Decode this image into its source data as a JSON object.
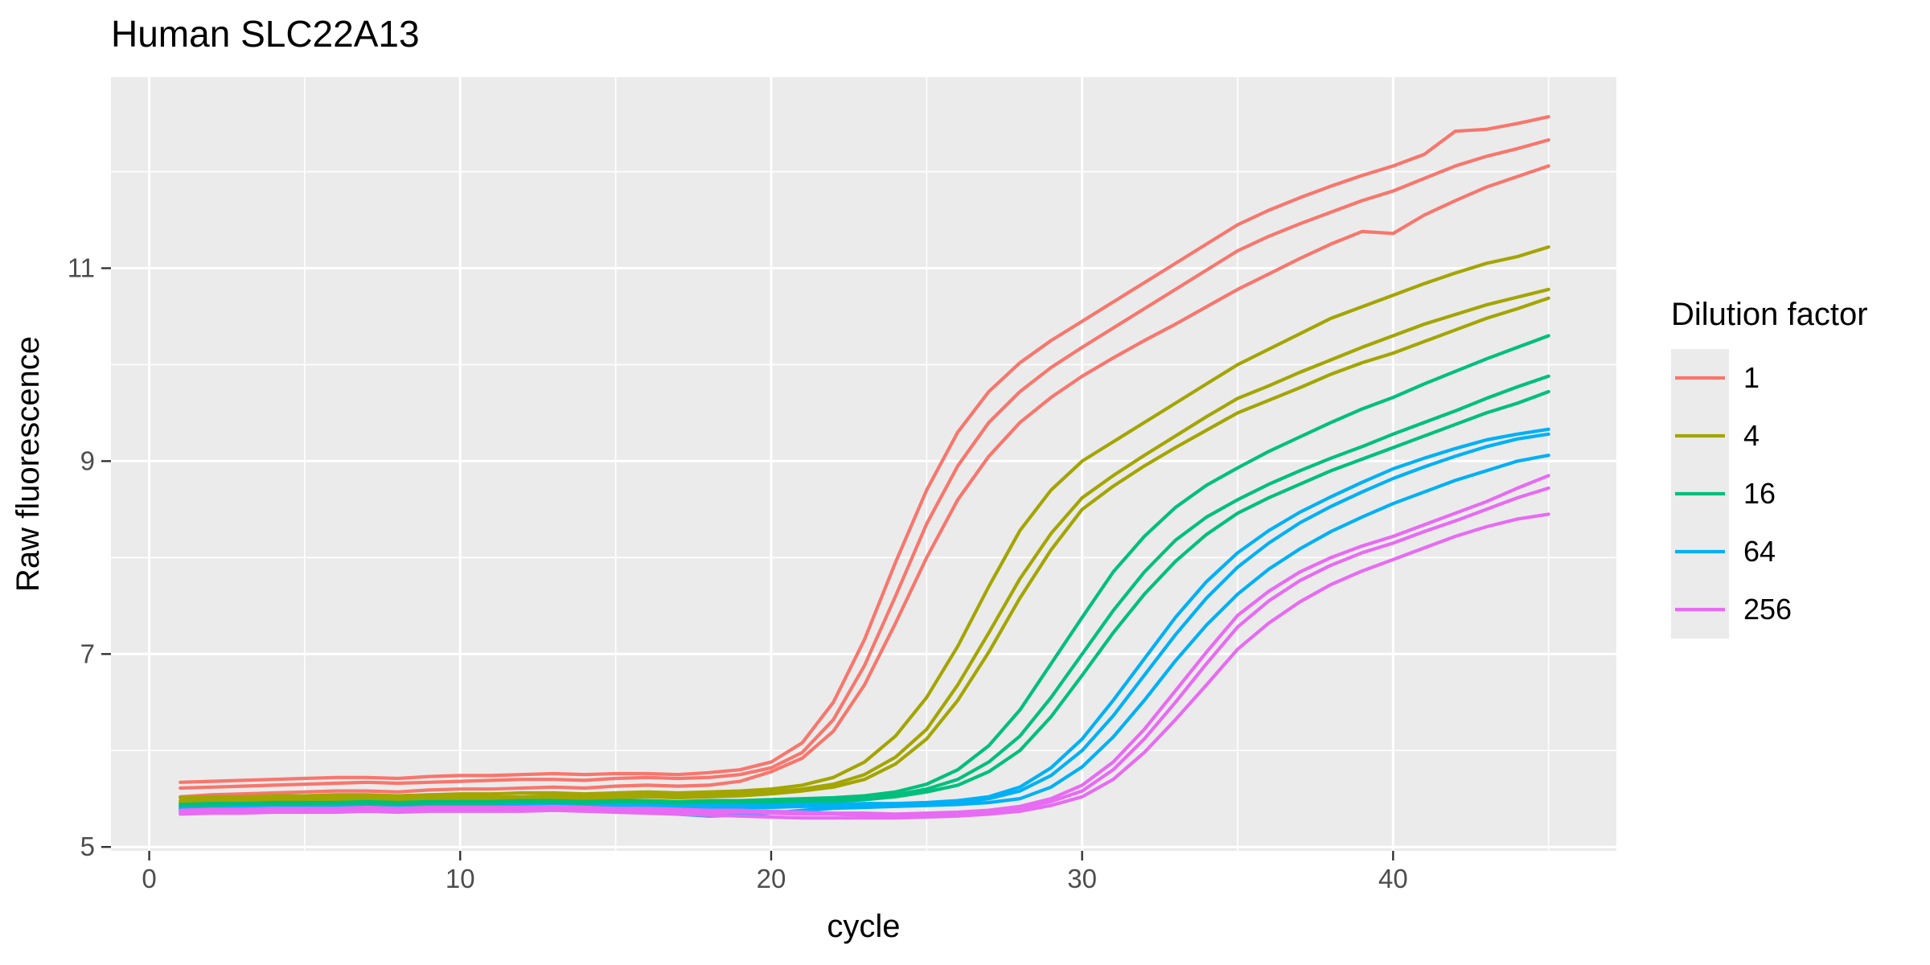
{
  "title": "Human SLC22A13",
  "axes": {
    "x": {
      "label": "cycle",
      "major_ticks": [
        0,
        10,
        20,
        30,
        40
      ],
      "minor_ticks": [
        5,
        15,
        25,
        35,
        45
      ],
      "range": [
        -1.23,
        47.18
      ]
    },
    "y": {
      "label": "Raw fluorescence",
      "major_ticks": [
        5,
        7,
        9,
        11
      ],
      "minor_ticks": [
        6,
        8,
        10,
        12
      ],
      "range": [
        4.96,
        12.98
      ]
    }
  },
  "legend": {
    "title": "Dilution factor",
    "entries": [
      {
        "label": "1",
        "color": "#F8766D"
      },
      {
        "label": "4",
        "color": "#A3A500"
      },
      {
        "label": "16",
        "color": "#00BF7D"
      },
      {
        "label": "64",
        "color": "#00B0F6"
      },
      {
        "label": "256",
        "color": "#E76BF3"
      }
    ]
  },
  "style": {
    "panel_bg": "#EBEBEB",
    "grid_color": "#FFFFFF",
    "tick_color": "#333333",
    "line_width": 4.2
  },
  "chart_data": {
    "type": "line",
    "title": "Human SLC22A13",
    "xlabel": "cycle",
    "ylabel": "Raw fluorescence",
    "xlim": [
      -1.23,
      47.18
    ],
    "ylim": [
      4.96,
      12.98
    ],
    "grid": true,
    "legend_position": "right",
    "x": [
      1,
      2,
      3,
      4,
      5,
      6,
      7,
      8,
      9,
      10,
      11,
      12,
      13,
      14,
      15,
      16,
      17,
      18,
      19,
      20,
      21,
      22,
      23,
      24,
      25,
      26,
      27,
      28,
      29,
      30,
      31,
      32,
      33,
      34,
      35,
      36,
      37,
      38,
      39,
      40,
      41,
      42,
      43,
      44,
      45
    ],
    "series": [
      {
        "name": "dilution 1 rep 1",
        "dilution": "1",
        "color": "#F8766D",
        "values": [
          5.67,
          5.68,
          5.69,
          5.7,
          5.71,
          5.72,
          5.72,
          5.71,
          5.73,
          5.74,
          5.74,
          5.75,
          5.76,
          5.75,
          5.76,
          5.76,
          5.75,
          5.77,
          5.8,
          5.88,
          6.08,
          6.5,
          7.15,
          7.95,
          8.7,
          9.3,
          9.72,
          10.02,
          10.25,
          10.45,
          10.65,
          10.85,
          11.05,
          11.25,
          11.45,
          11.6,
          11.73,
          11.85,
          11.96,
          12.06,
          12.18,
          12.42,
          12.44,
          12.5,
          12.57
        ]
      },
      {
        "name": "dilution 1 rep 2",
        "dilution": "1",
        "color": "#F8766D",
        "values": [
          5.61,
          5.62,
          5.63,
          5.64,
          5.65,
          5.66,
          5.67,
          5.66,
          5.67,
          5.68,
          5.69,
          5.7,
          5.7,
          5.69,
          5.71,
          5.72,
          5.71,
          5.72,
          5.75,
          5.82,
          5.98,
          6.32,
          6.88,
          7.6,
          8.35,
          8.95,
          9.4,
          9.72,
          9.97,
          10.18,
          10.38,
          10.58,
          10.78,
          10.98,
          11.18,
          11.33,
          11.46,
          11.58,
          11.7,
          11.8,
          11.93,
          12.06,
          12.16,
          12.24,
          12.33
        ]
      },
      {
        "name": "dilution 1 rep 3",
        "dilution": "1",
        "color": "#F8766D",
        "values": [
          5.52,
          5.54,
          5.55,
          5.56,
          5.57,
          5.58,
          5.58,
          5.57,
          5.59,
          5.6,
          5.6,
          5.61,
          5.62,
          5.61,
          5.63,
          5.64,
          5.63,
          5.64,
          5.68,
          5.78,
          5.92,
          6.2,
          6.68,
          7.32,
          8.0,
          8.6,
          9.05,
          9.4,
          9.66,
          9.88,
          10.07,
          10.25,
          10.42,
          10.6,
          10.78,
          10.94,
          11.1,
          11.25,
          11.38,
          11.36,
          11.55,
          11.7,
          11.84,
          11.95,
          12.06
        ]
      },
      {
        "name": "dilution 4 rep 1",
        "dilution": "4",
        "color": "#A3A500",
        "values": [
          5.51,
          5.52,
          5.52,
          5.53,
          5.53,
          5.54,
          5.54,
          5.53,
          5.54,
          5.55,
          5.55,
          5.56,
          5.56,
          5.55,
          5.56,
          5.57,
          5.56,
          5.57,
          5.58,
          5.6,
          5.64,
          5.72,
          5.88,
          6.15,
          6.55,
          7.08,
          7.7,
          8.28,
          8.7,
          9.0,
          9.2,
          9.4,
          9.6,
          9.8,
          10.0,
          10.16,
          10.32,
          10.48,
          10.6,
          10.72,
          10.84,
          10.95,
          11.05,
          11.12,
          11.22
        ]
      },
      {
        "name": "dilution 4 rep 2",
        "dilution": "4",
        "color": "#A3A500",
        "values": [
          5.48,
          5.49,
          5.49,
          5.5,
          5.5,
          5.51,
          5.51,
          5.5,
          5.51,
          5.52,
          5.52,
          5.52,
          5.53,
          5.52,
          5.53,
          5.54,
          5.53,
          5.54,
          5.55,
          5.57,
          5.6,
          5.65,
          5.75,
          5.93,
          6.22,
          6.68,
          7.22,
          7.78,
          8.25,
          8.62,
          8.85,
          9.06,
          9.26,
          9.46,
          9.65,
          9.78,
          9.92,
          10.05,
          10.18,
          10.3,
          10.42,
          10.52,
          10.62,
          10.7,
          10.78
        ]
      },
      {
        "name": "dilution 4 rep 3",
        "dilution": "4",
        "color": "#A3A500",
        "values": [
          5.46,
          5.47,
          5.47,
          5.48,
          5.48,
          5.49,
          5.49,
          5.48,
          5.49,
          5.5,
          5.5,
          5.5,
          5.51,
          5.5,
          5.51,
          5.52,
          5.51,
          5.52,
          5.53,
          5.55,
          5.58,
          5.62,
          5.7,
          5.86,
          6.12,
          6.52,
          7.02,
          7.58,
          8.08,
          8.5,
          8.74,
          8.95,
          9.14,
          9.32,
          9.5,
          9.63,
          9.76,
          9.9,
          10.02,
          10.12,
          10.24,
          10.36,
          10.48,
          10.58,
          10.69
        ]
      },
      {
        "name": "dilution 16 rep 1",
        "dilution": "16",
        "color": "#00BF7D",
        "values": [
          5.44,
          5.45,
          5.45,
          5.46,
          5.46,
          5.46,
          5.47,
          5.46,
          5.47,
          5.47,
          5.47,
          5.48,
          5.48,
          5.47,
          5.48,
          5.48,
          5.47,
          5.48,
          5.48,
          5.49,
          5.5,
          5.51,
          5.53,
          5.57,
          5.65,
          5.8,
          6.05,
          6.42,
          6.9,
          7.38,
          7.85,
          8.22,
          8.52,
          8.75,
          8.93,
          9.1,
          9.25,
          9.4,
          9.54,
          9.66,
          9.8,
          9.93,
          10.06,
          10.18,
          10.3
        ]
      },
      {
        "name": "dilution 16 rep 2",
        "dilution": "16",
        "color": "#00BF7D",
        "values": [
          5.42,
          5.43,
          5.43,
          5.44,
          5.44,
          5.44,
          5.45,
          5.44,
          5.45,
          5.45,
          5.45,
          5.46,
          5.46,
          5.45,
          5.46,
          5.46,
          5.45,
          5.46,
          5.46,
          5.47,
          5.48,
          5.49,
          5.51,
          5.54,
          5.6,
          5.7,
          5.88,
          6.15,
          6.55,
          7.0,
          7.45,
          7.85,
          8.18,
          8.42,
          8.6,
          8.76,
          8.9,
          9.03,
          9.15,
          9.28,
          9.4,
          9.52,
          9.65,
          9.77,
          9.88
        ]
      },
      {
        "name": "dilution 16 rep 3",
        "dilution": "16",
        "color": "#00BF7D",
        "values": [
          5.4,
          5.41,
          5.41,
          5.42,
          5.42,
          5.42,
          5.43,
          5.42,
          5.43,
          5.43,
          5.43,
          5.44,
          5.44,
          5.43,
          5.44,
          5.44,
          5.43,
          5.44,
          5.44,
          5.45,
          5.46,
          5.47,
          5.49,
          5.52,
          5.57,
          5.64,
          5.78,
          6.0,
          6.35,
          6.78,
          7.22,
          7.62,
          7.96,
          8.24,
          8.46,
          8.62,
          8.76,
          8.9,
          9.02,
          9.14,
          9.26,
          9.38,
          9.5,
          9.6,
          9.72
        ]
      },
      {
        "name": "dilution 64 rep 1",
        "dilution": "64",
        "color": "#00B0F6",
        "values": [
          5.4,
          5.4,
          5.41,
          5.41,
          5.41,
          5.42,
          5.42,
          5.41,
          5.42,
          5.42,
          5.42,
          5.43,
          5.43,
          5.42,
          5.43,
          5.43,
          5.42,
          5.43,
          5.43,
          5.43,
          5.44,
          5.44,
          5.45,
          5.45,
          5.46,
          5.48,
          5.52,
          5.62,
          5.82,
          6.12,
          6.52,
          6.95,
          7.38,
          7.75,
          8.05,
          8.28,
          8.47,
          8.63,
          8.78,
          8.92,
          9.03,
          9.13,
          9.22,
          9.28,
          9.33
        ]
      },
      {
        "name": "dilution 64 rep 2",
        "dilution": "64",
        "color": "#00B0F6",
        "values": [
          5.38,
          5.38,
          5.39,
          5.39,
          5.39,
          5.4,
          5.4,
          5.39,
          5.4,
          5.4,
          5.4,
          5.41,
          5.41,
          5.4,
          5.41,
          5.41,
          5.4,
          5.41,
          5.41,
          5.41,
          5.42,
          5.42,
          5.43,
          5.43,
          5.44,
          5.46,
          5.5,
          5.58,
          5.74,
          6.0,
          6.36,
          6.78,
          7.2,
          7.58,
          7.9,
          8.15,
          8.36,
          8.53,
          8.68,
          8.82,
          8.94,
          9.05,
          9.15,
          9.23,
          9.28
        ]
      },
      {
        "name": "dilution 64 rep 3",
        "dilution": "64",
        "color": "#00B0F6",
        "values": [
          5.36,
          5.36,
          5.37,
          5.37,
          5.37,
          5.38,
          5.38,
          5.37,
          5.38,
          5.38,
          5.38,
          5.38,
          5.39,
          5.38,
          5.37,
          5.36,
          5.34,
          5.32,
          5.33,
          5.35,
          5.38,
          5.4,
          5.41,
          5.42,
          5.43,
          5.44,
          5.46,
          5.5,
          5.62,
          5.83,
          6.14,
          6.52,
          6.93,
          7.3,
          7.62,
          7.88,
          8.09,
          8.27,
          8.42,
          8.56,
          8.68,
          8.8,
          8.9,
          9.0,
          9.06
        ]
      },
      {
        "name": "dilution 256 rep 1",
        "dilution": "256",
        "color": "#E76BF3",
        "values": [
          5.38,
          5.39,
          5.39,
          5.4,
          5.4,
          5.4,
          5.41,
          5.4,
          5.41,
          5.41,
          5.41,
          5.41,
          5.42,
          5.41,
          5.4,
          5.4,
          5.39,
          5.38,
          5.38,
          5.37,
          5.36,
          5.35,
          5.35,
          5.34,
          5.35,
          5.36,
          5.38,
          5.42,
          5.5,
          5.64,
          5.88,
          6.22,
          6.62,
          7.02,
          7.4,
          7.65,
          7.85,
          8.0,
          8.12,
          8.22,
          8.34,
          8.46,
          8.58,
          8.72,
          8.85
        ]
      },
      {
        "name": "dilution 256 rep 2",
        "dilution": "256",
        "color": "#E76BF3",
        "values": [
          5.36,
          5.37,
          5.37,
          5.38,
          5.38,
          5.38,
          5.39,
          5.38,
          5.39,
          5.39,
          5.39,
          5.39,
          5.4,
          5.39,
          5.38,
          5.38,
          5.37,
          5.36,
          5.36,
          5.35,
          5.34,
          5.34,
          5.33,
          5.33,
          5.34,
          5.35,
          5.36,
          5.4,
          5.47,
          5.58,
          5.8,
          6.12,
          6.5,
          6.9,
          7.28,
          7.55,
          7.76,
          7.92,
          8.05,
          8.15,
          8.27,
          8.38,
          8.5,
          8.62,
          8.72
        ]
      },
      {
        "name": "dilution 256 rep 3",
        "dilution": "256",
        "color": "#E76BF3",
        "values": [
          5.34,
          5.35,
          5.35,
          5.36,
          5.36,
          5.36,
          5.37,
          5.36,
          5.37,
          5.37,
          5.37,
          5.37,
          5.38,
          5.37,
          5.36,
          5.35,
          5.34,
          5.33,
          5.32,
          5.31,
          5.3,
          5.3,
          5.3,
          5.3,
          5.31,
          5.32,
          5.34,
          5.37,
          5.43,
          5.52,
          5.7,
          5.98,
          6.32,
          6.68,
          7.05,
          7.32,
          7.54,
          7.72,
          7.86,
          7.98,
          8.1,
          8.22,
          8.32,
          8.4,
          8.45
        ]
      }
    ]
  }
}
